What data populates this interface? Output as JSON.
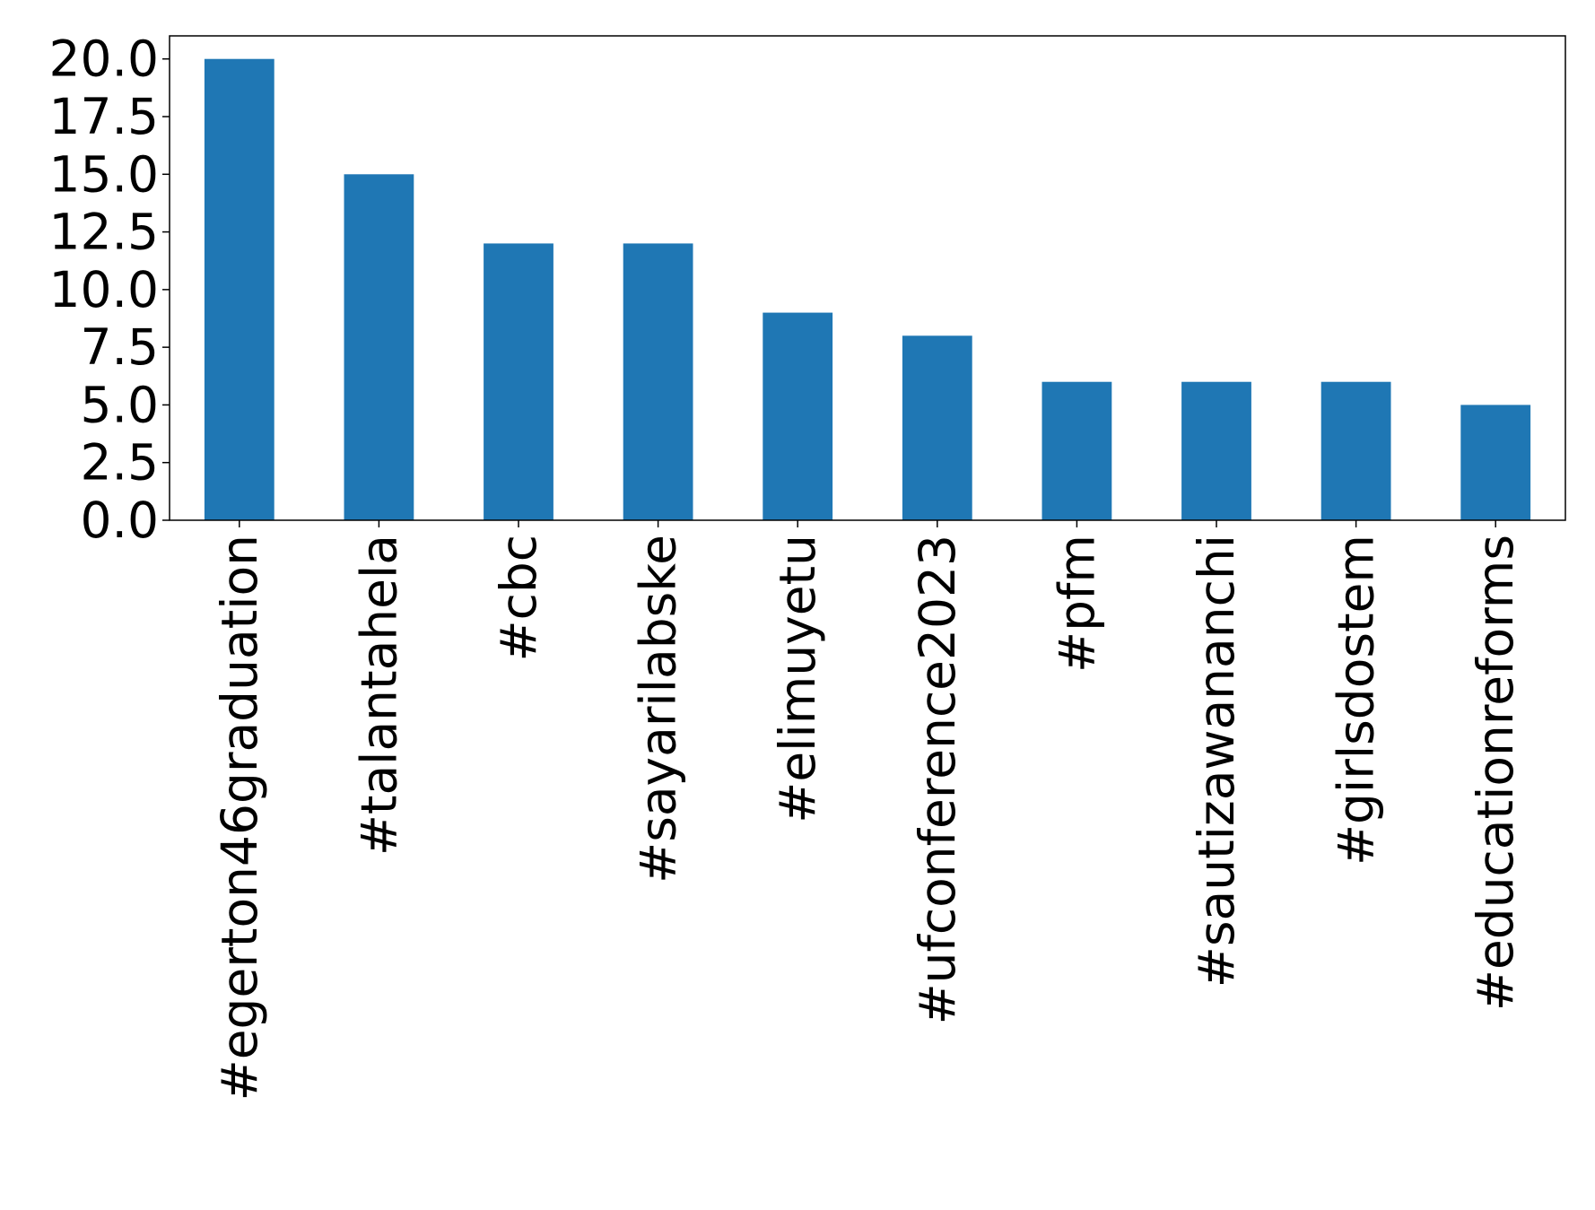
{
  "chart_data": {
    "type": "bar",
    "title": "",
    "xlabel": "",
    "ylabel": "",
    "categories": [
      "#egerton46graduation",
      "#talantahela",
      "#cbc",
      "#sayarilabske",
      "#elimuyetu",
      "#ufconference2023",
      "#pfm",
      "#sautizawananchi",
      "#girlsdostem",
      "#educationreforms"
    ],
    "values": [
      20,
      15,
      12,
      12,
      9,
      8,
      6,
      6,
      6,
      5
    ],
    "ylim": [
      0,
      21
    ],
    "yticks": [
      "0.0",
      "2.5",
      "5.0",
      "7.5",
      "10.0",
      "12.5",
      "15.0",
      "17.5",
      "20.0"
    ],
    "ytick_values": [
      0,
      2.5,
      5,
      7.5,
      10,
      12.5,
      15,
      17.5,
      20
    ],
    "bar_color": "#1f77b4",
    "grid": false,
    "legend": "none"
  }
}
